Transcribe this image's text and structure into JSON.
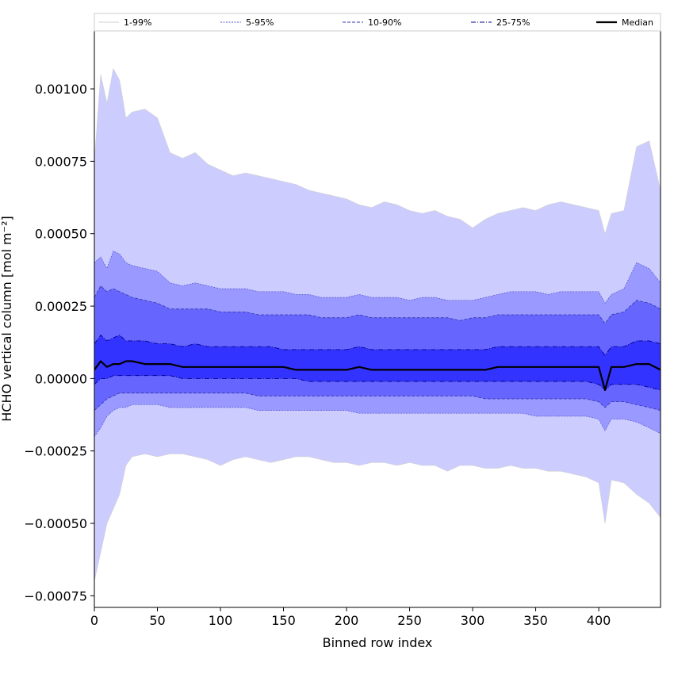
{
  "chart_data": {
    "type": "area",
    "title": "",
    "xlabel": "Binned row index",
    "ylabel": "HCHO vertical column [mol m⁻²]",
    "xlim": [
      0,
      449
    ],
    "ylim": [
      -0.00079,
      0.0012
    ],
    "x_ticks": [
      0,
      50,
      100,
      150,
      200,
      250,
      300,
      350,
      400
    ],
    "y_ticks": [
      -0.00075,
      -0.0005,
      -0.00025,
      0.0,
      0.00025,
      0.0005,
      0.00075,
      0.001
    ],
    "y_tick_labels": [
      "−0.00075",
      "−0.00050",
      "−0.00025",
      "0.00000",
      "0.00025",
      "0.00050",
      "0.00075",
      "0.00100"
    ],
    "grid": false,
    "legend_position": "top",
    "x": [
      0,
      5,
      10,
      15,
      20,
      25,
      30,
      40,
      50,
      60,
      70,
      80,
      90,
      100,
      110,
      120,
      130,
      140,
      150,
      160,
      170,
      180,
      190,
      200,
      210,
      220,
      230,
      240,
      250,
      260,
      270,
      280,
      290,
      300,
      310,
      320,
      330,
      340,
      350,
      360,
      370,
      380,
      390,
      400,
      405,
      410,
      420,
      430,
      440,
      449
    ],
    "bands": [
      {
        "name": "1-99%",
        "upper": [
          0.00075,
          0.00105,
          0.00095,
          0.00107,
          0.00103,
          0.0009,
          0.00092,
          0.00093,
          0.0009,
          0.00078,
          0.00076,
          0.00078,
          0.00074,
          0.00072,
          0.0007,
          0.00071,
          0.0007,
          0.00069,
          0.00068,
          0.00067,
          0.00065,
          0.00064,
          0.00063,
          0.00062,
          0.0006,
          0.00059,
          0.00061,
          0.0006,
          0.00058,
          0.00057,
          0.00058,
          0.00056,
          0.00055,
          0.00052,
          0.00055,
          0.00057,
          0.00058,
          0.00059,
          0.00058,
          0.0006,
          0.00061,
          0.0006,
          0.00059,
          0.00058,
          0.0005,
          0.00057,
          0.00058,
          0.0008,
          0.00082,
          0.00065
        ],
        "lower": [
          -0.0007,
          -0.0006,
          -0.0005,
          -0.00045,
          -0.0004,
          -0.0003,
          -0.00027,
          -0.00026,
          -0.00027,
          -0.00026,
          -0.00026,
          -0.00027,
          -0.00028,
          -0.0003,
          -0.00028,
          -0.00027,
          -0.00028,
          -0.00029,
          -0.00028,
          -0.00027,
          -0.00027,
          -0.00028,
          -0.00029,
          -0.00029,
          -0.0003,
          -0.00029,
          -0.00029,
          -0.0003,
          -0.00029,
          -0.0003,
          -0.0003,
          -0.00032,
          -0.0003,
          -0.0003,
          -0.00031,
          -0.00031,
          -0.0003,
          -0.00031,
          -0.00031,
          -0.00032,
          -0.00032,
          -0.00033,
          -0.00034,
          -0.00036,
          -0.0005,
          -0.00035,
          -0.00036,
          -0.0004,
          -0.00043,
          -0.00048
        ],
        "color": "#ccccff",
        "line": "#d0d0d0",
        "dash": "none",
        "width": 0.6
      },
      {
        "name": "5-95%",
        "upper": [
          0.0004,
          0.00042,
          0.00038,
          0.00044,
          0.00043,
          0.0004,
          0.00039,
          0.00038,
          0.00037,
          0.00033,
          0.00032,
          0.00033,
          0.00032,
          0.00031,
          0.00031,
          0.00031,
          0.0003,
          0.0003,
          0.0003,
          0.00029,
          0.00029,
          0.00028,
          0.00028,
          0.00028,
          0.00029,
          0.00028,
          0.00028,
          0.00028,
          0.00027,
          0.00028,
          0.00028,
          0.00027,
          0.00027,
          0.00027,
          0.00028,
          0.00029,
          0.0003,
          0.0003,
          0.0003,
          0.00029,
          0.0003,
          0.0003,
          0.0003,
          0.0003,
          0.00026,
          0.00029,
          0.00031,
          0.0004,
          0.00038,
          0.00033
        ],
        "lower": [
          -0.0002,
          -0.00017,
          -0.00013,
          -0.00011,
          -0.0001,
          -0.0001,
          -9e-05,
          -9e-05,
          -9e-05,
          -0.0001,
          -0.0001,
          -0.0001,
          -0.0001,
          -0.0001,
          -0.0001,
          -0.0001,
          -0.00011,
          -0.00011,
          -0.00011,
          -0.00011,
          -0.00011,
          -0.00011,
          -0.00011,
          -0.00011,
          -0.00012,
          -0.00012,
          -0.00012,
          -0.00012,
          -0.00012,
          -0.00012,
          -0.00012,
          -0.00012,
          -0.00012,
          -0.00012,
          -0.00012,
          -0.00012,
          -0.00012,
          -0.00012,
          -0.00013,
          -0.00013,
          -0.00013,
          -0.00013,
          -0.00013,
          -0.00014,
          -0.00018,
          -0.00014,
          -0.00014,
          -0.00015,
          -0.00017,
          -0.00019
        ],
        "color": "#9999ff",
        "line": "#5555cc",
        "dash": "2,1.5",
        "width": 0.7
      },
      {
        "name": "10-90%",
        "upper": [
          0.00028,
          0.00032,
          0.0003,
          0.00031,
          0.0003,
          0.00029,
          0.00028,
          0.00027,
          0.00026,
          0.00024,
          0.00024,
          0.00024,
          0.00024,
          0.00023,
          0.00023,
          0.00023,
          0.00022,
          0.00022,
          0.00022,
          0.00022,
          0.00022,
          0.00021,
          0.00021,
          0.00021,
          0.00022,
          0.00021,
          0.00021,
          0.00021,
          0.00021,
          0.00021,
          0.00021,
          0.00021,
          0.0002,
          0.00021,
          0.00021,
          0.00022,
          0.00022,
          0.00022,
          0.00022,
          0.00022,
          0.00022,
          0.00022,
          0.00022,
          0.00022,
          0.00019,
          0.00022,
          0.00023,
          0.00027,
          0.00026,
          0.00024
        ],
        "lower": [
          -0.00011,
          -9e-05,
          -7e-05,
          -6e-05,
          -5e-05,
          -5e-05,
          -5e-05,
          -5e-05,
          -5e-05,
          -5e-05,
          -5e-05,
          -5e-05,
          -5e-05,
          -5e-05,
          -5e-05,
          -5e-05,
          -6e-05,
          -6e-05,
          -6e-05,
          -6e-05,
          -6e-05,
          -6e-05,
          -6e-05,
          -6e-05,
          -6e-05,
          -6e-05,
          -6e-05,
          -6e-05,
          -6e-05,
          -6e-05,
          -6e-05,
          -6e-05,
          -6e-05,
          -6e-05,
          -7e-05,
          -7e-05,
          -7e-05,
          -7e-05,
          -7e-05,
          -7e-05,
          -7e-05,
          -7e-05,
          -7e-05,
          -8e-05,
          -0.0001,
          -8e-05,
          -8e-05,
          -9e-05,
          -0.0001,
          -0.00011
        ],
        "color": "#6666ff",
        "line": "#3333aa",
        "dash": "4,2",
        "width": 0.8
      },
      {
        "name": "25-75%",
        "upper": [
          0.00012,
          0.00015,
          0.00013,
          0.00014,
          0.00015,
          0.00013,
          0.00013,
          0.00013,
          0.00012,
          0.00012,
          0.00011,
          0.00012,
          0.00011,
          0.00011,
          0.00011,
          0.00011,
          0.00011,
          0.00011,
          0.0001,
          0.0001,
          0.0001,
          0.0001,
          0.0001,
          0.0001,
          0.00011,
          0.0001,
          0.0001,
          0.0001,
          0.0001,
          0.0001,
          0.0001,
          0.0001,
          0.0001,
          0.0001,
          0.0001,
          0.00011,
          0.00011,
          0.00011,
          0.00011,
          0.00011,
          0.00011,
          0.00011,
          0.00011,
          0.00011,
          8e-05,
          0.00011,
          0.00011,
          0.00013,
          0.00013,
          0.00012
        ],
        "lower": [
          -2e-05,
          0.0,
          0.0,
          1e-05,
          1e-05,
          1e-05,
          1e-05,
          1e-05,
          1e-05,
          1e-05,
          0.0,
          0.0,
          0.0,
          0.0,
          0.0,
          0.0,
          0.0,
          0.0,
          0.0,
          0.0,
          -1e-05,
          -1e-05,
          -1e-05,
          -1e-05,
          -1e-05,
          -1e-05,
          -1e-05,
          -1e-05,
          -1e-05,
          -1e-05,
          -1e-05,
          -1e-05,
          -1e-05,
          -1e-05,
          -1e-05,
          -1e-05,
          -1e-05,
          -1e-05,
          -1e-05,
          -1e-05,
          -1e-05,
          -1e-05,
          -1e-05,
          -2e-05,
          -4e-05,
          -2e-05,
          -2e-05,
          -2e-05,
          -3e-05,
          -4e-05
        ],
        "color": "#3333ff",
        "line": "#000088",
        "dash": "6,2,1,2",
        "width": 0.9
      }
    ],
    "series": [
      {
        "name": "Median",
        "values": [
          3e-05,
          6e-05,
          4e-05,
          5e-05,
          5e-05,
          6e-05,
          6e-05,
          5e-05,
          5e-05,
          5e-05,
          4e-05,
          4e-05,
          4e-05,
          4e-05,
          4e-05,
          4e-05,
          4e-05,
          4e-05,
          4e-05,
          3e-05,
          3e-05,
          3e-05,
          3e-05,
          3e-05,
          4e-05,
          3e-05,
          3e-05,
          3e-05,
          3e-05,
          3e-05,
          3e-05,
          3e-05,
          3e-05,
          3e-05,
          3e-05,
          4e-05,
          4e-05,
          4e-05,
          4e-05,
          4e-05,
          4e-05,
          4e-05,
          4e-05,
          4e-05,
          -4e-05,
          4e-05,
          4e-05,
          5e-05,
          5e-05,
          3e-05
        ],
        "color": "#000000"
      }
    ]
  }
}
